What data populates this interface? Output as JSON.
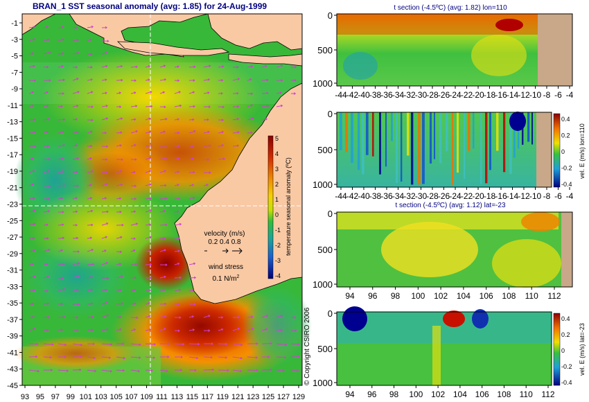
{
  "map": {
    "title": "BRAN_1  SST seasonal anomaly  (avg: 1.85)  for 24-Aug-1999",
    "y_ticks": [
      "-1",
      "-3",
      "-5",
      "-7",
      "-9",
      "-11",
      "-13",
      "-15",
      "-17",
      "-19",
      "-21",
      "-23",
      "-25",
      "-27",
      "-29",
      "-31",
      "-33",
      "-35",
      "-37",
      "-39",
      "-41",
      "-43",
      "-45"
    ],
    "x_ticks": [
      "93",
      "95",
      "97",
      "99",
      "101",
      "103",
      "105",
      "107",
      "109",
      "111",
      "113",
      "115",
      "117",
      "119",
      "121",
      "123",
      "125",
      "127",
      "129"
    ],
    "colorbar": {
      "label": "temperature seasonal anomaly  (ºC)",
      "ticks": [
        "5",
        "4",
        "3",
        "2",
        "1",
        "0",
        "-1",
        "-2",
        "-3",
        "-4"
      ],
      "range": [
        -4,
        5
      ]
    },
    "velocity_legend": {
      "title": "velocity (m/s)",
      "values": "0.2 0.4 0.8"
    },
    "wind_legend": {
      "title": "wind stress",
      "value": "0.1 N/m",
      "superscript": "2"
    },
    "copyright": "© Copyright CSIRO 2006",
    "colors": {
      "land": "#f9c9a4",
      "arrows": "#d040d0",
      "section_marker": "#ffffff",
      "title_navy": "#000080"
    }
  },
  "sections": [
    {
      "title": "t section (-4.5ºC) (avg: 1.82) lon=110",
      "y_ticks": [
        "0",
        "500",
        "1000"
      ],
      "x_ticks": [
        "-44",
        "-42",
        "-40",
        "-38",
        "-36",
        "-34",
        "-32",
        "-30",
        "-28",
        "-26",
        "-24",
        "-22",
        "-20",
        "-18",
        "-16",
        "-14",
        "-12",
        "-10",
        "-8",
        "-6",
        "-4"
      ]
    },
    {
      "title": "",
      "y_ticks": [
        "0",
        "500",
        "1000"
      ],
      "x_ticks": [
        "-44",
        "-42",
        "-40",
        "-38",
        "-36",
        "-34",
        "-32",
        "-30",
        "-28",
        "-26",
        "-24",
        "-22",
        "-20",
        "-18",
        "-16",
        "-14",
        "-12",
        "-10",
        "-8",
        "-6",
        "-4"
      ],
      "colorbar": {
        "label": "vel. E (m/s) lon=110",
        "ticks": [
          "0.4",
          "0.2",
          "0",
          "-0.2",
          "-0.4"
        ]
      }
    },
    {
      "title": "t section (-4.5ºC) (avg: 1.12) lat=-23",
      "y_ticks": [
        "0",
        "500",
        "1000"
      ],
      "x_ticks": [
        "94",
        "96",
        "98",
        "100",
        "102",
        "104",
        "106",
        "108",
        "110",
        "112"
      ]
    },
    {
      "title": "",
      "y_ticks": [
        "0",
        "500",
        "1000"
      ],
      "x_ticks": [
        "94",
        "96",
        "98",
        "100",
        "102",
        "104",
        "106",
        "108",
        "110",
        "112"
      ],
      "colorbar": {
        "label": "vel. E (m/s) lat=-23",
        "ticks": [
          "0.4",
          "0.2",
          "0",
          "-0.2",
          "-0.4"
        ]
      }
    }
  ]
}
